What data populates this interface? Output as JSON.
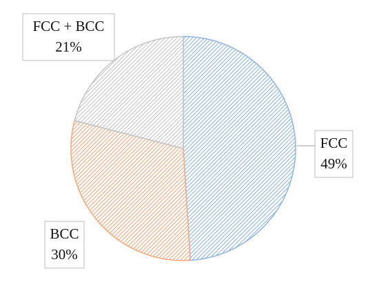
{
  "chart_data": {
    "type": "pie",
    "categories": [
      "FCC",
      "BCC",
      "FCC + BCC"
    ],
    "values": [
      49,
      30,
      21
    ],
    "value_labels": [
      "49%",
      "30%",
      "21%"
    ],
    "colors": [
      "#8fb4e3",
      "#f4a77c",
      "#c4c4c4"
    ]
  }
}
